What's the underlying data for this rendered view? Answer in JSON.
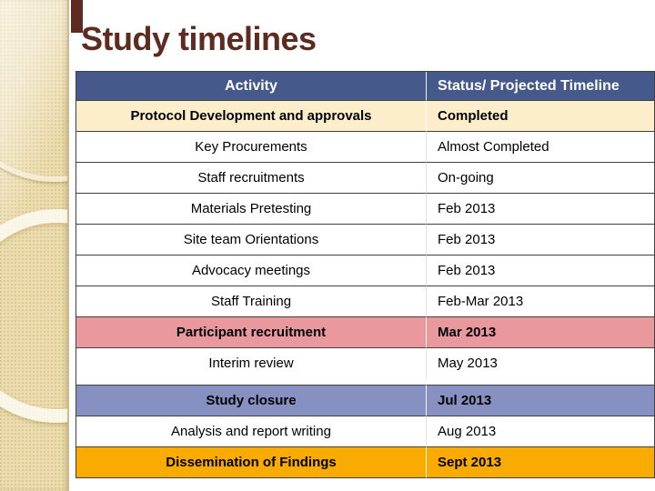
{
  "slide": {
    "title": "Study timelines"
  },
  "table": {
    "columns": [
      "Activity",
      "Status/ Projected Timeline"
    ],
    "rows": [
      {
        "variant": "cream",
        "activity": "Protocol Development and approvals",
        "status": "Completed"
      },
      {
        "variant": "white",
        "activity": "Key Procurements",
        "status": "Almost Completed"
      },
      {
        "variant": "white",
        "activity": "Staff recruitments",
        "status": "On-going"
      },
      {
        "variant": "white",
        "activity": "Materials Pretesting",
        "status": "Feb 2013"
      },
      {
        "variant": "white",
        "activity": "Site team Orientations",
        "status": "Feb 2013"
      },
      {
        "variant": "white",
        "activity": "Advocacy meetings",
        "status": "Feb 2013"
      },
      {
        "variant": "white",
        "activity": "Staff Training",
        "status": "Feb-Mar 2013"
      },
      {
        "variant": "pink",
        "activity": "Participant recruitment",
        "status": "Mar 2013"
      },
      {
        "variant": "white",
        "activity": "Interim review",
        "status": "May 2013"
      },
      {
        "variant": "spacer",
        "activity": "",
        "status": ""
      },
      {
        "variant": "periwinkle",
        "activity": "Study closure",
        "status": "Jul 2013"
      },
      {
        "variant": "white",
        "activity": "Analysis and report writing",
        "status": "Aug 2013"
      },
      {
        "variant": "orange",
        "activity": "Dissemination of Findings",
        "status": "Sept 2013"
      }
    ]
  },
  "colors": {
    "header_bg": "#45598b",
    "header_text": "#ffffff",
    "row_cream": "#fceecb",
    "row_pink": "#e9999e",
    "row_periwinkle": "#8691c1",
    "row_orange": "#f9ab00",
    "title": "#5e2b21",
    "accent_bar": "#5e2b21",
    "strip_base": "#ebddb0",
    "table_border": "#404040"
  }
}
